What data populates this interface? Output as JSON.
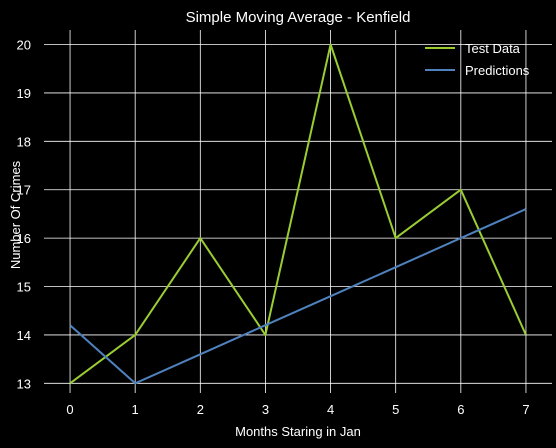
{
  "chart_data": {
    "type": "line",
    "title": "Simple Moving Average - Kenfield",
    "xlabel": "Months Staring in Jan",
    "ylabel": "Number Of Crimes",
    "x": [
      0,
      1,
      2,
      3,
      4,
      5,
      6,
      7
    ],
    "xlim": [
      -0.4,
      7.4
    ],
    "ylim": [
      12.8,
      20.3
    ],
    "xticks": [
      0,
      1,
      2,
      3,
      4,
      5,
      6,
      7
    ],
    "yticks": [
      13,
      14,
      15,
      16,
      17,
      18,
      19,
      20
    ],
    "grid": true,
    "legend_position": "top-right",
    "background": "#000000",
    "series": [
      {
        "name": "Test Data",
        "color": "#9acd32",
        "values": [
          13,
          14,
          16,
          14,
          20,
          16,
          17,
          14
        ]
      },
      {
        "name": "Predictions",
        "color": "#4f81bd",
        "values": [
          14.2,
          13,
          13.6,
          14.2,
          14.8,
          15.4,
          16,
          16.6
        ]
      }
    ]
  }
}
